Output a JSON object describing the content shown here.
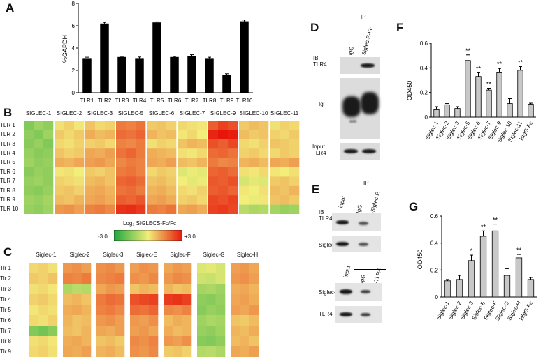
{
  "panels": {
    "A": {
      "label": "A",
      "chart_data": {
        "type": "bar",
        "ylabel": "%GAPDH",
        "ylim": [
          0,
          8
        ],
        "yticks": [
          "0",
          "2",
          "4",
          "6",
          "8"
        ],
        "categories": [
          "TLR1",
          "TLR2",
          "TLR3",
          "TLR4",
          "TLR5",
          "TLR6",
          "TLR7",
          "TLR8",
          "TLR9",
          "TLR10"
        ],
        "values": [
          3.1,
          6.2,
          3.2,
          3.1,
          6.3,
          3.2,
          3.3,
          3.1,
          1.6,
          6.4
        ],
        "errors": [
          0.08,
          0.1,
          0.05,
          0.1,
          0.05,
          0.05,
          0.1,
          0.08,
          0.1,
          0.12
        ]
      }
    },
    "B": {
      "label": "B",
      "chart_data": {
        "type": "heatmap",
        "columns": [
          "SIGLEC-1",
          "SIGLEC-2",
          "SIGLEC-3",
          "SIGLEC-5",
          "SIGLEC-6",
          "SIGLEC-7",
          "SIGLEC-9",
          "SIGLEC-10",
          "SIGLEC-11"
        ],
        "rows": [
          "TLR 1",
          "TLR 2",
          "TLR 3",
          "TLR 4",
          "TLR 5",
          "TLR 6",
          "TLR 7",
          "TLR 8",
          "TLR 9",
          "TLR 10"
        ],
        "replicates": 3,
        "values": [
          [
            -1.6,
            -1.2,
            -1.4,
            0.2,
            0.4,
            0.1,
            0.6,
            0.3,
            0.4,
            1.6,
            1.5,
            1.7,
            0.5,
            0.6,
            0.4,
            0.3,
            0.2,
            0.1,
            2.0,
            2.4,
            2.2,
            0.5,
            0.7,
            0.6,
            0.2,
            0.4,
            0.3
          ],
          [
            -1.4,
            -1.6,
            -1.2,
            0.5,
            0.3,
            0.5,
            0.9,
            0.7,
            0.8,
            1.8,
            1.7,
            1.9,
            0.8,
            0.6,
            0.7,
            0.1,
            0.3,
            0.0,
            2.8,
            3.0,
            2.9,
            0.7,
            0.5,
            0.6,
            0.4,
            0.3,
            0.5
          ],
          [
            -1.5,
            -1.3,
            -1.6,
            0.3,
            0.2,
            0.4,
            0.4,
            0.5,
            0.3,
            1.5,
            1.4,
            1.6,
            0.2,
            0.4,
            0.3,
            0.6,
            0.8,
            0.7,
            2.2,
            2.0,
            2.3,
            0.3,
            0.2,
            0.4,
            0.6,
            0.5,
            0.4
          ],
          [
            -1.3,
            -1.5,
            -1.4,
            0.6,
            0.4,
            0.5,
            1.0,
            0.9,
            1.1,
            1.7,
            1.9,
            1.6,
            0.9,
            0.8,
            0.7,
            0.2,
            0.1,
            0.3,
            1.8,
            1.9,
            1.7,
            0.4,
            0.5,
            0.3,
            0.3,
            0.5,
            0.4
          ],
          [
            -1.2,
            -1.4,
            -1.3,
            0.9,
            0.8,
            1.0,
            1.1,
            1.2,
            1.0,
            1.4,
            1.6,
            1.5,
            1.0,
            0.9,
            1.1,
            0.7,
            0.6,
            0.8,
            1.6,
            1.4,
            1.5,
            0.8,
            0.9,
            0.7,
            1.0,
            0.9,
            1.1
          ],
          [
            -1.5,
            -1.3,
            -1.4,
            0.1,
            0.2,
            0.0,
            0.5,
            0.4,
            0.6,
            1.6,
            1.7,
            1.5,
            0.3,
            0.5,
            0.4,
            -0.3,
            -0.1,
            -0.2,
            1.9,
            2.0,
            1.8,
            0.2,
            0.1,
            0.3,
            0.1,
            0.0,
            0.2
          ],
          [
            -1.3,
            -1.2,
            -1.4,
            0.4,
            0.3,
            0.2,
            0.7,
            0.8,
            0.6,
            1.9,
            2.0,
            1.8,
            0.6,
            0.7,
            0.5,
            0.0,
            -0.2,
            -0.1,
            2.1,
            2.0,
            2.2,
            -0.4,
            -0.2,
            -0.3,
            0.5,
            0.6,
            0.4
          ],
          [
            -1.4,
            -1.5,
            -1.3,
            0.5,
            0.6,
            0.4,
            0.9,
            1.0,
            0.8,
            1.7,
            1.8,
            1.6,
            0.8,
            0.9,
            0.7,
            0.3,
            0.2,
            0.4,
            2.0,
            2.1,
            1.9,
            0.1,
            0.0,
            0.2,
            0.7,
            0.6,
            0.8
          ],
          [
            -1.2,
            -1.3,
            -1.1,
            0.7,
            0.6,
            0.8,
            1.0,
            1.1,
            0.9,
            2.0,
            1.9,
            2.1,
            1.0,
            1.1,
            0.9,
            0.4,
            0.5,
            0.3,
            2.3,
            2.2,
            2.4,
            0.0,
            -0.1,
            0.1,
            0.6,
            0.7,
            0.5
          ],
          [
            -1.3,
            -1.4,
            -1.2,
            1.2,
            1.3,
            1.1,
            1.5,
            1.6,
            1.4,
            2.6,
            2.7,
            2.5,
            1.6,
            1.5,
            1.7,
            1.0,
            1.1,
            0.9,
            2.4,
            2.5,
            2.3,
            -0.8,
            -1.0,
            -0.9,
            -1.1,
            -1.3,
            -1.2
          ]
        ],
        "scale_min": -3.0,
        "scale_max": 3.0
      },
      "legend": {
        "title": "Log₂ SIGLECS-Fc/Fc",
        "min_label": "-3.0",
        "max_label": "+3.0"
      }
    },
    "C": {
      "label": "C",
      "chart_data": {
        "type": "heatmap",
        "columns": [
          "Siglec-1",
          "Siglec-2",
          "Siglec-3",
          "Siglec-E",
          "Siglec-F",
          "Siglec-G",
          "Siglec-H"
        ],
        "rows": [
          "Tlr 1",
          "Tlr 2",
          "Tlr 3",
          "Tlr 4",
          "Tlr 5",
          "Tlr 6",
          "Tlr 7",
          "Tlr 8",
          "Tlr 9"
        ],
        "replicates": 3,
        "values": [
          [
            0.3,
            0.4,
            0.2,
            1.2,
            1.3,
            1.1,
            1.3,
            1.4,
            1.2,
            1.1,
            1.3,
            1.2,
            1.0,
            1.2,
            1.1,
            -0.3,
            -0.2,
            -0.4,
            1.1,
            1.2,
            1.0
          ],
          [
            0.5,
            0.4,
            0.6,
            1.5,
            1.4,
            1.6,
            1.4,
            1.5,
            1.6,
            1.3,
            1.2,
            1.4,
            1.2,
            1.4,
            1.3,
            -0.5,
            -0.6,
            -0.4,
            1.2,
            1.3,
            1.1
          ],
          [
            0.2,
            0.3,
            0.1,
            -1.0,
            -0.8,
            -0.9,
            1.0,
            1.2,
            1.1,
            0.6,
            0.8,
            0.7,
            0.8,
            0.6,
            0.7,
            -1.1,
            -1.0,
            -1.2,
            0.9,
            1.0,
            0.8
          ],
          [
            0.4,
            0.5,
            0.3,
            0.7,
            0.8,
            0.6,
            1.6,
            1.8,
            1.7,
            2.2,
            2.3,
            2.4,
            2.5,
            2.6,
            2.4,
            -1.4,
            -1.5,
            -1.3,
            1.0,
            1.1,
            0.9
          ],
          [
            0.1,
            0.3,
            0.2,
            0.9,
            1.0,
            0.8,
            1.5,
            1.6,
            1.4,
            1.8,
            1.7,
            1.9,
            1.4,
            1.3,
            1.5,
            -1.5,
            -1.3,
            -1.4,
            1.1,
            1.0,
            1.2
          ],
          [
            0.3,
            0.2,
            0.4,
            0.8,
            0.6,
            0.7,
            1.2,
            1.3,
            1.1,
            1.2,
            1.1,
            1.3,
            0.7,
            0.9,
            0.8,
            -1.2,
            -1.0,
            -1.1,
            0.6,
            0.5,
            0.7
          ],
          [
            -1.6,
            -1.8,
            -1.5,
            0.7,
            0.6,
            0.8,
            1.0,
            0.9,
            1.1,
            1.1,
            1.2,
            1.0,
            0.9,
            0.7,
            0.8,
            -1.3,
            -1.4,
            -1.2,
            0.8,
            0.7,
            0.9
          ],
          [
            0.2,
            0.3,
            0.1,
            0.9,
            1.0,
            0.8,
            0.6,
            0.7,
            0.5,
            1.4,
            1.3,
            1.5,
            1.2,
            1.1,
            1.3,
            -1.5,
            -1.6,
            -1.4,
            0.7,
            0.8,
            0.6
          ],
          [
            0.3,
            0.4,
            0.2,
            1.0,
            0.9,
            1.1,
            0.8,
            0.9,
            0.7,
            1.3,
            1.2,
            1.4,
            0.5,
            0.6,
            0.4,
            -0.9,
            -0.8,
            -1.0,
            1.0,
            0.9,
            1.1
          ]
        ],
        "scale_min": -3.0,
        "scale_max": 3.0
      }
    },
    "D": {
      "label": "D",
      "ip_label": "IP",
      "lanes": [
        "IgG",
        "Siglec-E-Fc"
      ],
      "blots": [
        {
          "name": "IB TLR4",
          "label_line1": "IB",
          "label_line2": "TLR4"
        },
        {
          "name": "Ig",
          "label_line1": "Ig",
          "label_line2": ""
        },
        {
          "name": "Input TLR4",
          "label_line1": "Input",
          "label_line2": "TLR4"
        }
      ]
    },
    "E": {
      "label": "E",
      "top": {
        "ip_label": "IP",
        "lanes": [
          "input",
          "IgG",
          "α-Siglec-E"
        ],
        "blots": [
          {
            "label_line1": "IB",
            "label_line2": "TLR4"
          },
          {
            "label_line1": "Siglec-E",
            "label_line2": ""
          }
        ]
      },
      "bottom": {
        "lanes": [
          "input",
          "IgG",
          "α-TLR4"
        ],
        "blots": [
          {
            "label_line1": "Siglec-E",
            "label_line2": ""
          },
          {
            "label_line1": "TLR4",
            "label_line2": ""
          }
        ]
      }
    },
    "F": {
      "label": "F",
      "chart_data": {
        "type": "bar",
        "ylabel": "OD450",
        "ylim": [
          0,
          0.6
        ],
        "yticks": [
          "0",
          "0.2",
          "0.4",
          "0.6"
        ],
        "categories": [
          "Siglec-1",
          "Siglec-2",
          "Siglec-3",
          "Siglec-5",
          "Siglec-6",
          "Siglec-7",
          "Siglec-9",
          "Siglec-10",
          "Siglec-11",
          "HIgG-Fc"
        ],
        "values": [
          0.06,
          0.1,
          0.07,
          0.46,
          0.33,
          0.22,
          0.36,
          0.11,
          0.38,
          0.105
        ],
        "errors": [
          0.025,
          0.01,
          0.015,
          0.045,
          0.03,
          0.015,
          0.035,
          0.04,
          0.03,
          0.008
        ],
        "significance": [
          "",
          "",
          "",
          "**",
          "**",
          "**",
          "**",
          "",
          "**",
          ""
        ]
      }
    },
    "G": {
      "label": "G",
      "chart_data": {
        "type": "bar",
        "ylabel": "OD450",
        "ylim": [
          0,
          0.6
        ],
        "yticks": [
          "0",
          "0.2",
          "0.4",
          "0.6"
        ],
        "categories": [
          "Siglec-1",
          "Siglec-2",
          "Siglec-3",
          "Siglec-E",
          "Siglec-F",
          "Siglec-G",
          "Siglec-H",
          "HIgG-Fc"
        ],
        "values": [
          0.12,
          0.13,
          0.27,
          0.45,
          0.49,
          0.16,
          0.29,
          0.13
        ],
        "errors": [
          0.01,
          0.03,
          0.04,
          0.04,
          0.05,
          0.05,
          0.025,
          0.015
        ],
        "significance": [
          "",
          "",
          "*",
          "**",
          "**",
          "",
          "**",
          ""
        ]
      }
    }
  },
  "colors": {
    "bar_a": "#000000",
    "bar_fg": "#c8c8c8",
    "heat_low": "#1fa83c",
    "heat_mid": "#f2ee7a",
    "heat_high": "#e8160a"
  }
}
